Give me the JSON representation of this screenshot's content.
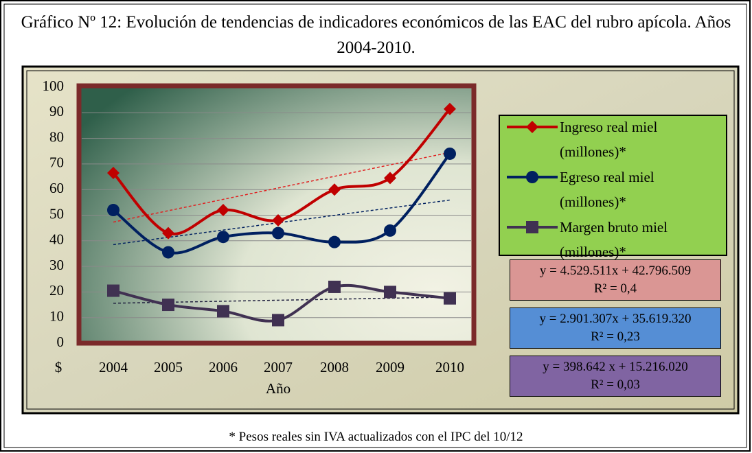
{
  "chart_data": {
    "type": "line",
    "title": "Gráfico Nº 12: Evolución de tendencias de indicadores económicos de las EAC del rubro apícola. Años 2004-2010.",
    "y_axis_label": "$",
    "x_axis_label": "Año",
    "footnote": "* Pesos reales sin IVA actualizados con el IPC del 10/12",
    "categories": [
      "2004",
      "2005",
      "2006",
      "2007",
      "2008",
      "2009",
      "2010"
    ],
    "ylim": [
      0,
      100
    ],
    "yticks": [
      0,
      10,
      20,
      30,
      40,
      50,
      60,
      70,
      80,
      90,
      100
    ],
    "grid": true,
    "series": [
      {
        "name": "Ingreso real miel (millones)*",
        "color": "#c00000",
        "marker": "diamond",
        "values": [
          66.5,
          43,
          52,
          48,
          60,
          64.5,
          91.5
        ],
        "trend": [
          47.3,
          74.5
        ],
        "trend_color": "#e02020"
      },
      {
        "name": "Egreso real miel (millones)*",
        "color": "#002060",
        "marker": "circle",
        "values": [
          52,
          35.5,
          41.5,
          43,
          39.5,
          44,
          74
        ],
        "trend": [
          38.5,
          55.9
        ],
        "trend_color": "#002060"
      },
      {
        "name": "Margen bruto miel (millones)*",
        "color": "#403152",
        "marker": "square",
        "values": [
          20.5,
          15,
          12.5,
          9,
          22,
          20,
          17.5
        ],
        "trend": [
          15.6,
          18.0
        ],
        "trend_color": "#1f1f3f"
      }
    ],
    "equations": [
      {
        "equation": "y = 4.529.511x + 42.796.509",
        "r2": "R² = 0,4",
        "color": "#da9694"
      },
      {
        "equation": "y = 2.901.307x + 35.619.320",
        "r2": "R² = 0,23",
        "color": "#558ed5"
      },
      {
        "equation": "y =  398.642  x + 15.216.020",
        "r2": "R² = 0,03",
        "color": "#8064a2"
      }
    ]
  }
}
